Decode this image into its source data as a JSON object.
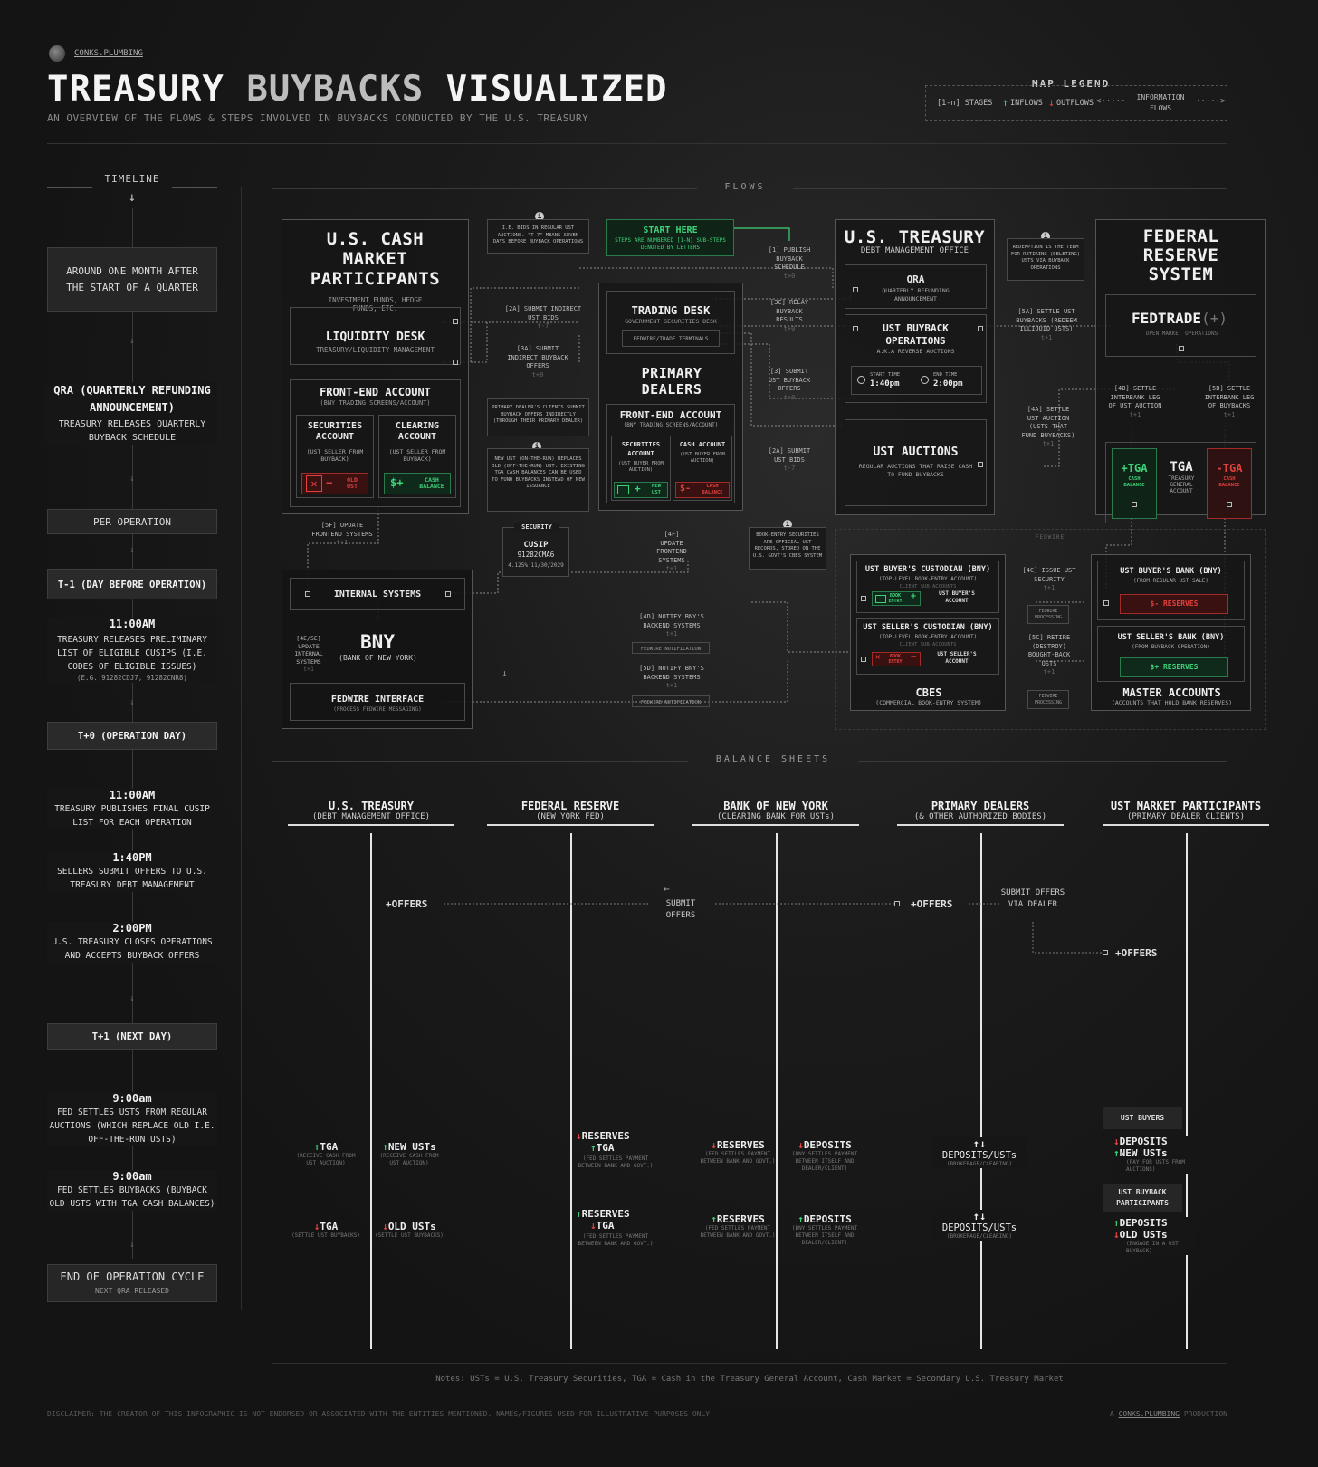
{
  "header": {
    "brand": "CONKS.PLUMBING",
    "title_1": "TREASURY",
    "title_2": "BUYBACKS",
    "title_3": "VISUALIZED",
    "subtitle": "AN OVERVIEW OF THE FLOWS & STEPS INVOLVED IN BUYBACKS CONDUCTED BY THE U.S. TREASURY"
  },
  "legend": {
    "title": "MAP LEGEND",
    "stages": "[1-n] STAGES",
    "inflows": "INFLOWS",
    "outflows": "OUTFLOWS",
    "info_flows": "INFORMATION FLOWS"
  },
  "timeline": {
    "title": "TIMELINE",
    "items": {
      "around_month": "AROUND ONE MONTH AFTER THE START OF A QUARTER",
      "qra_title": "QRA (QUARTERLY REFUNDING ANNOUNCEMENT)",
      "qra_text": "TREASURY RELEASES QUARTERLY BUYBACK SCHEDULE",
      "per_operation": "PER OPERATION",
      "t_minus_1": "T-1 (DAY BEFORE OPERATION)",
      "t1_time": "11:00AM",
      "t1_text": "TREASURY RELEASES PRELIMINARY LIST OF ELIGIBLE CUSIPs (I.E. CODES OF ELIGIBLE ISSUES)",
      "t1_eg": "(E.G. 91282CDJ7, 91282CNR8)",
      "t0": "T+0 (OPERATION DAY)",
      "t0_time1": "11:00AM",
      "t0_text1": "TREASURY PUBLISHES FINAL CUSIP LIST FOR EACH OPERATION",
      "t0_time2": "1:40PM",
      "t0_text2": "SELLERS SUBMIT OFFERS TO U.S. TREASURY DEBT MANAGEMENT",
      "t0_time3": "2:00PM",
      "t0_text3": "U.S. TREASURY CLOSES OPERATIONS AND ACCEPTS BUYBACK OFFERS",
      "t_plus_1": "T+1 (NEXT DAY)",
      "t1n_time1": "9:00am",
      "t1n_text1": "FED SETTLES USTs FROM REGULAR AUCTIONS (WHICH REPLACE OLD I.E. OFF-THE-RUN USTs)",
      "t1n_time2": "9:00am",
      "t1n_text2": "FED SETTLES BUYBACKS (BUYBACK OLD USTs WITH TGA CASH BALANCES)",
      "end_title": "END OF OPERATION CYCLE",
      "end_sub": "NEXT QRA RELEASED"
    }
  },
  "flows": {
    "title": "FLOWS",
    "cash_market": {
      "title": "U.S. CASH MARKET PARTICIPANTS",
      "sub": "INVESTMENT FUNDS, HEDGE FUNDS, ETC.",
      "liquidity": "LIQUIDITY DESK",
      "liquidity_sub": "TREASURY/LIQUIDITY MANAGEMENT",
      "frontend": "FRONT-END ACCOUNT",
      "frontend_sub": "(BNY TRADING SCREENS/ACCOUNT)",
      "sec_acct": "SECURITIES ACCOUNT",
      "sec_acct_sub": "(UST SELLER FROM BUYBACK)",
      "clr_acct": "CLEARING ACCOUNT",
      "clr_acct_sub": "(UST SELLER FROM BUYBACK)",
      "old_ust": "OLD UST",
      "cash_balance": "CASH BALANCE"
    },
    "bny": {
      "internal": "INTERNAL SYSTEMS",
      "name": "BNY",
      "name_sub": "(BANK OF NEW YORK)",
      "fedwire_iface": "FEDWIRE INTERFACE",
      "fedwire_iface_sub": "(PROCESS FEDWIRE MESSAGING)",
      "step_5f": "[5f] UPDATE FRONTEND SYSTEMS",
      "step_4e": "[4e/5e] UPDATE INTERNAL SYSTEMS"
    },
    "info_bids": "I.E. BIDS IN REGULAR UST AUCTIONS. \"t-7\" MEANS SEVEN DAYS BEFORE BUYBACK OPERATIONS",
    "start_here": "START HERE",
    "start_sub": "STEPS ARE NUMBERED [1-n] SUB-STEPS DENOTED BY LETTERS",
    "step_2a": "[2a] SUBMIT INDIRECT UST BIDS",
    "step_3a": "[3a] SUBMIT INDIRECT BUYBACK OFFERS",
    "pd_clients": "PRIMARY DEALER'S CLIENTS SUBMIT BUYBACK OFFERS INDIRECTLY (THROUGH THEIR PRIMARY DEALER)",
    "new_ust_info": "NEW UST (ON-THE-RUN) REPLACES OLD (OFF-THE-RUN) UST. EXISTING TGA CASH BALANCES CAN BE USED TO FUND BUYBACKS INSTEAD OF NEW ISSUANCE",
    "security": {
      "label": "SECURITY",
      "cusip": "CUSIP",
      "code": "91282CMA6",
      "desc": "4.125% 11/30/2029"
    },
    "dealers": {
      "trading": "TRADING DESK",
      "trading_sub": "GOVERNMENT SECURITIES DESK",
      "terminals": "FEDWIRE/TRADE TERMINALS",
      "title": "PRIMARY DEALERS",
      "frontend": "FRONT-END ACCOUNT",
      "frontend_sub": "(BNY TRADING SCREENS/ACCOUNT)",
      "sec_acct": "SECURITIES ACCOUNT",
      "sec_acct_sub": "(UST BUYER FROM AUCTION)",
      "cash_acct": "CASH ACCOUNT",
      "cash_acct_sub": "(UST BUYER FROM AUCTION)",
      "new_ust": "NEW UST",
      "cash_balance": "CASH BALANCE"
    },
    "step_4f": "[4f] UPDATE FRONTEND SYSTEMS",
    "step_4d": "[4d] NOTIFY BNY'S BACKEND SYSTEMS",
    "step_5d": "[5d] NOTIFY BNY'S BACKEND SYSTEMS",
    "fedwire_notif": "FEDWIRE NOTIFICATION",
    "step_1": "[1] PUBLISH BUYBACK SCHEDULE",
    "step_3c": "[3C] RELAY BUYBACK RESULTS",
    "step_3": "[3] SUBMIT UST BUYBACK OFFERS",
    "step_2": "[2a] SUBMIT UST BIDS",
    "book_entry_info": "BOOK-ENTRY SECURITIES ARE OFFICIAL UST RECORDS, STORED ON THE U.S. GOVT'S CBES SYSTEM",
    "treasury": {
      "title": "U.S. TREASURY",
      "sub": "DEBT MANAGEMENT OFFICE",
      "qra": "QRA",
      "qra_sub": "QUARTERLY REFUNDING ANNOUNCEMENT",
      "buyback": "UST BUYBACK OPERATIONS",
      "buyback_sub": "A.K.A REVERSE AUCTIONS",
      "start_lbl": "START TIME",
      "start_val": "1:40pm",
      "end_lbl": "END TIME",
      "end_val": "2:00pm",
      "auctions": "UST AUCTIONS",
      "auctions_sub": "REGULAR AUCTIONS THAT RAISE CASH TO FUND BUYBACKS"
    },
    "redemption_info": "REDEMPTION IS THE TERM FOR RETIRING (DELETING) USTs VIA BUYBACK OPERATIONS",
    "step_5a": "[5a] SETTLE UST BUYBACKS (REDEEM ILLIQUID USTs)",
    "step_4a": "[4a] SETTLE UST AUCTION (USTs THAT FUND BUYBACKS)",
    "step_4b": "[4b] SETTLE INTERBANK LEG OF UST AUCTION",
    "step_5b": "[5b] SETTLE INTERBANK LEG OF BUYBACKS",
    "fed": {
      "title": "FEDERAL RESERVE SYSTEM",
      "fedtrade": "FEDTRADE",
      "fedtrade_plus": "(+)",
      "fedtrade_sub": "OPEN MARKET OPERATIONS",
      "tga_plus": "+TGA",
      "tga_minus": "-TGA",
      "tga_cash": "CASH BALANCE",
      "tga": "TGA",
      "tga_sub": "TREASURY GENERAL ACCOUNT"
    },
    "fedwire": "FEDWIRE",
    "cbes": {
      "buyer_cust": "UST BUYER'S CUSTODIAN (BNY)",
      "buyer_cust_sub": "(TOP-LEVEL BOOK-ENTRY ACCOUNT)",
      "client_sub": "CLIENT SUB-ACCOUNTS",
      "book_entry": "BOOK ENTRY",
      "buyer_acct": "UST BUYER'S ACCOUNT",
      "seller_cust": "UST SELLER'S CUSTODIAN (BNY)",
      "seller_cust_sub": "(TOP-LEVEL BOOK-ENTRY ACCOUNT)",
      "seller_acct": "UST SELLER'S ACCOUNT",
      "title": "CBES",
      "title_sub": "(COMMERCIAL BOOK-ENTRY SYSTEM)"
    },
    "step_4c": "[4c] ISSUE UST SECURITY",
    "step_5c": "[5c] RETIRE (DESTROY) BOUGHT-BACK USTs",
    "fedwire_proc": "FEDWIRE PROCESSING",
    "master": {
      "buyer_bank": "UST BUYER'S BANK (BNY)",
      "buyer_bank_sub": "(FROM REGULAR UST SALE)",
      "reserves_minus": "$- RESERVES",
      "seller_bank": "UST SELLER'S BANK (BNY)",
      "seller_bank_sub": "(FROM BUYBACK OPERATION)",
      "reserves_plus": "$+ RESERVES",
      "title": "MASTER ACCOUNTS",
      "title_sub": "(ACCOUNTS THAT HOLD BANK RESERVES)"
    },
    "t_labels": {
      "t7": "t-7",
      "t0": "t+0",
      "t1": "t+1"
    }
  },
  "balance": {
    "title": "BALANCE SHEETS",
    "columns": [
      {
        "name": "U.S. TREASURY",
        "sub": "(DEBT MANAGEMENT OFFICE)"
      },
      {
        "name": "FEDERAL RESERVE",
        "sub": "(NEW YORK FED)"
      },
      {
        "name": "BANK OF NEW YORK",
        "sub": "(CLEARING BANK FOR USTs)"
      },
      {
        "name": "PRIMARY DEALERS",
        "sub": "(& OTHER AUTHORIZED BODIES)"
      },
      {
        "name": "UST MARKET PARTICIPANTS",
        "sub": "(PRIMARY DEALER CLIENTS)"
      }
    ],
    "offers": "+OFFERS",
    "submit_offers": "SUBMIT OFFERS",
    "submit_via": "SUBMIT OFFERS VIA DEALER",
    "tga": "TGA",
    "tga_note1": "(RECEIVE CASH FROM UST AUCTION)",
    "new_usts": "NEW USTs",
    "new_usts_note": "(RECEIVE CASH FROM UST AUCTION)",
    "tga_note2": "(SETTLE UST BUYBACKS)",
    "old_usts": "OLD USTs",
    "old_usts_note": "(SETTLE UST BUYBACKS)",
    "reserves": "RESERVES",
    "fed_note": "(FED SETTLES PAYMENT BETWEEN BANK AND GOVT.)",
    "deposits": "DEPOSITS",
    "bny_dep_note": "(BNY SETTLES PAYMENT BETWEEN ITSELF AND DEALER/CLIENT)",
    "dep_usts": "DEPOSITS/USTs",
    "brokerage": "(BROKERAGE/CLEARING)",
    "ust_buyers": "UST BUYERS",
    "pay_note": "(PAY FOR USTs FROM AUCTIONS)",
    "buyback_part": "UST BUYBACK PARTICIPANTS",
    "engage_note": "(ENGAGE IN A UST BUYBACK)"
  },
  "footer": {
    "notes": "Notes: USTs = U.S. Treasury Securities, TGA = Cash in the Treasury General Account, Cash Market = Secondary U.S. Treasury Market",
    "disclaimer": "DISCLAIMER: THE CREATOR OF THIS INFOGRAPHIC IS NOT ENDORSED OR ASSOCIATED WITH THE ENTITIES MENTIONED. NAMES/FIGURES USED FOR ILLUSTRATIVE PURPOSES ONLY",
    "credit_a": "A",
    "credit_link": "CONKS.PLUMBING",
    "credit_b": "PRODUCTION"
  },
  "colors": {
    "green": "#3ed27a",
    "red": "#e0413e",
    "bg": "#161616"
  }
}
